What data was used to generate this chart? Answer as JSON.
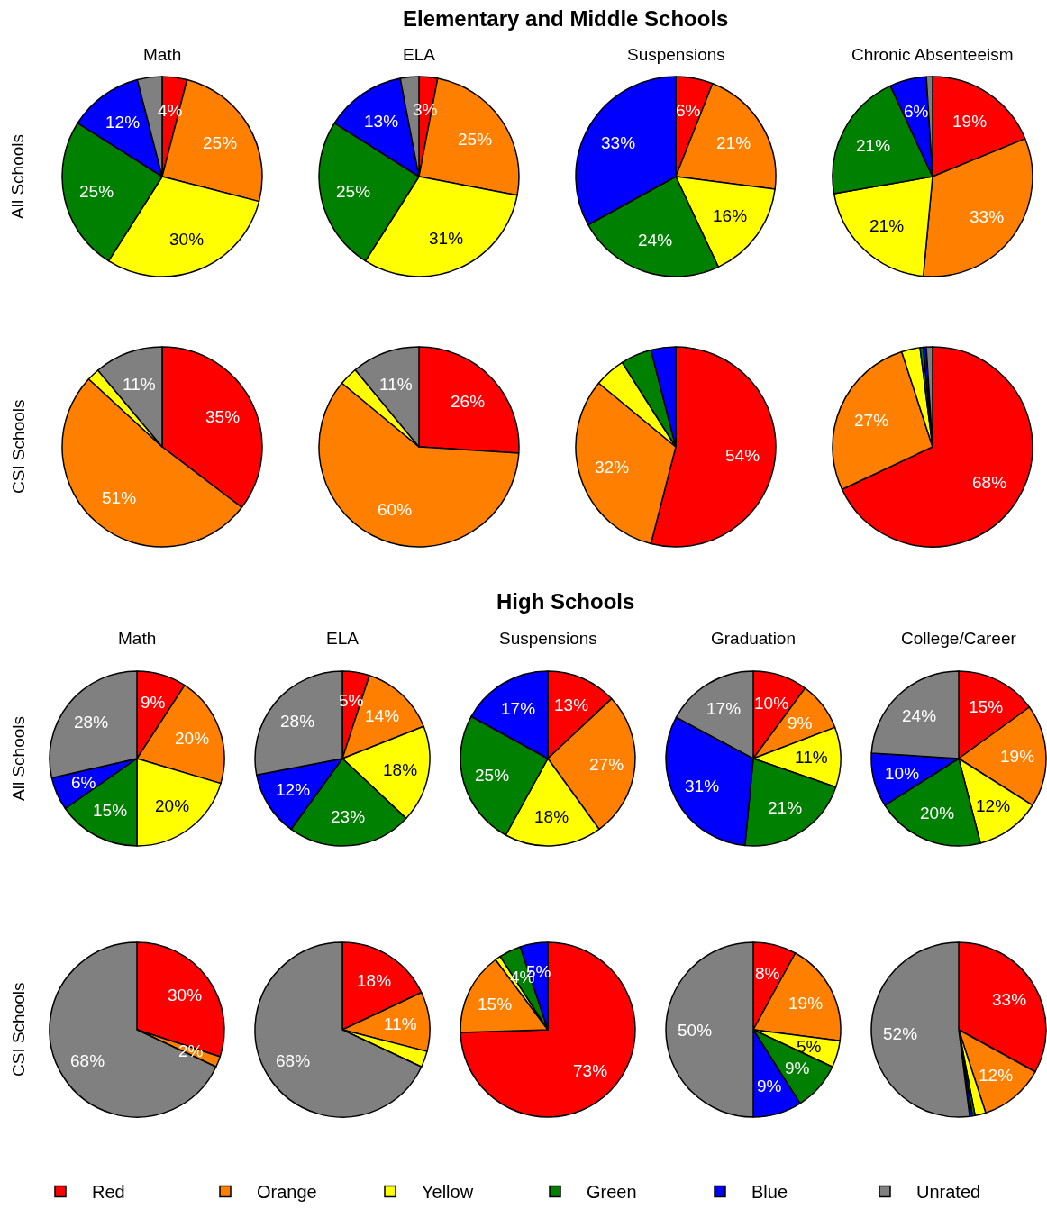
{
  "chart_data": [
    {
      "type": "pie",
      "title": "Math",
      "ylabel": "All Schools",
      "annotations": [
        "Elementary and Middle Schools"
      ],
      "legend": "bottom",
      "categories": [
        "Red",
        "Orange",
        "Yellow",
        "Green",
        "Blue",
        "Unrated"
      ],
      "values": [
        4,
        25,
        30,
        25,
        12,
        4
      ],
      "colors": [
        "#ff0000",
        "#ff8000",
        "#ffff00",
        "#008000",
        "#0000ff",
        "#808080"
      ],
      "value_labels": [
        "4%",
        "25%",
        "30%",
        "25%",
        "12%",
        null
      ]
    },
    {
      "type": "pie",
      "title": "ELA",
      "categories": [
        null,
        null,
        null,
        null,
        null,
        null
      ],
      "values": [
        3,
        25,
        31,
        25,
        13,
        3
      ],
      "colors": [
        "#ff0000",
        "#ff8000",
        "#ffff00",
        "#008000",
        "#0000ff",
        "#808080"
      ],
      "value_labels": [
        "3%",
        "25%",
        "31%",
        "25%",
        "13%",
        null
      ]
    },
    {
      "type": "pie",
      "title": "Suspensions",
      "categories": [
        null,
        null,
        null,
        null,
        null,
        null
      ],
      "values": [
        6,
        21,
        16,
        24,
        33,
        0
      ],
      "colors": [
        "#ff0000",
        "#ff8000",
        "#ffff00",
        "#008000",
        "#0000ff",
        "#808080"
      ],
      "value_labels": [
        "6%",
        "21%",
        "16%",
        "24%",
        "33%",
        null
      ]
    },
    {
      "type": "pie",
      "title": "Chronic Absenteeism",
      "categories": [
        null,
        null,
        null,
        null,
        null,
        null
      ],
      "values": [
        19,
        33,
        21,
        21,
        6,
        1
      ],
      "colors": [
        "#ff0000",
        "#ff8000",
        "#ffff00",
        "#008000",
        "#0000ff",
        "#808080"
      ],
      "value_labels": [
        "19%",
        "33%",
        "21%",
        "21%",
        "6%",
        null
      ]
    },
    {
      "type": "pie",
      "ylabel": "CSI Schools",
      "categories": [
        null,
        null,
        null,
        null,
        null,
        null
      ],
      "values": [
        35,
        51,
        2,
        0,
        0,
        11
      ],
      "colors": [
        "#ff0000",
        "#ff8000",
        "#ffff00",
        "#008000",
        "#0000ff",
        "#808080"
      ],
      "value_labels": [
        "35%",
        "51%",
        null,
        null,
        null,
        "11%"
      ]
    },
    {
      "type": "pie",
      "categories": [
        null,
        null,
        null,
        null,
        null,
        null
      ],
      "values": [
        26,
        60,
        3,
        0,
        0,
        11
      ],
      "colors": [
        "#ff0000",
        "#ff8000",
        "#ffff00",
        "#008000",
        "#0000ff",
        "#808080"
      ],
      "value_labels": [
        "26%",
        "60%",
        null,
        null,
        null,
        "11%"
      ]
    },
    {
      "type": "pie",
      "categories": [
        null,
        null,
        null,
        null,
        null,
        null
      ],
      "values": [
        54,
        32,
        5,
        5,
        4,
        0
      ],
      "colors": [
        "#ff0000",
        "#ff8000",
        "#ffff00",
        "#008000",
        "#0000ff",
        "#808080"
      ],
      "value_labels": [
        "54%",
        "32%",
        null,
        null,
        null,
        null
      ]
    },
    {
      "type": "pie",
      "categories": [
        null,
        null,
        null,
        null,
        null,
        null
      ],
      "values": [
        68,
        27,
        3,
        0.5,
        0.5,
        1
      ],
      "colors": [
        "#ff0000",
        "#ff8000",
        "#ffff00",
        "#008000",
        "#0000ff",
        "#808080"
      ],
      "value_labels": [
        "68%",
        "27%",
        null,
        null,
        null,
        null
      ]
    },
    {
      "type": "pie",
      "title": "Math",
      "ylabel": "All Schools",
      "annotations": [
        "High Schools"
      ],
      "categories": [
        null,
        null,
        null,
        null,
        null,
        null
      ],
      "values": [
        9,
        20,
        20,
        15,
        6,
        28
      ],
      "colors": [
        "#ff0000",
        "#ff8000",
        "#ffff00",
        "#008000",
        "#0000ff",
        "#808080"
      ],
      "value_labels": [
        "9%",
        "20%",
        "20%",
        "15%",
        "6%",
        "28%"
      ]
    },
    {
      "type": "pie",
      "title": "ELA",
      "categories": [
        null,
        null,
        null,
        null,
        null,
        null
      ],
      "values": [
        5,
        14,
        18,
        23,
        12,
        28
      ],
      "colors": [
        "#ff0000",
        "#ff8000",
        "#ffff00",
        "#008000",
        "#0000ff",
        "#808080"
      ],
      "value_labels": [
        "5%",
        "14%",
        "18%",
        "23%",
        "12%",
        "28%"
      ]
    },
    {
      "type": "pie",
      "title": "Suspensions",
      "categories": [
        null,
        null,
        null,
        null,
        null,
        null
      ],
      "values": [
        13,
        27,
        18,
        25,
        17,
        0
      ],
      "colors": [
        "#ff0000",
        "#ff8000",
        "#ffff00",
        "#008000",
        "#0000ff",
        "#808080"
      ],
      "value_labels": [
        "13%",
        "27%",
        "18%",
        "25%",
        "17%",
        null
      ]
    },
    {
      "type": "pie",
      "title": "Graduation",
      "categories": [
        null,
        null,
        null,
        null,
        null,
        null
      ],
      "values": [
        10,
        9,
        11,
        21,
        31,
        17
      ],
      "colors": [
        "#ff0000",
        "#ff8000",
        "#ffff00",
        "#008000",
        "#0000ff",
        "#808080"
      ],
      "value_labels": [
        "10%",
        "9%",
        "11%",
        "21%",
        "31%",
        "17%"
      ]
    },
    {
      "type": "pie",
      "title": "College/Career",
      "categories": [
        null,
        null,
        null,
        null,
        null,
        null
      ],
      "values": [
        15,
        19,
        12,
        20,
        10,
        24
      ],
      "colors": [
        "#ff0000",
        "#ff8000",
        "#ffff00",
        "#008000",
        "#0000ff",
        "#808080"
      ],
      "value_labels": [
        "15%",
        "19%",
        "12%",
        "20%",
        "10%",
        "24%"
      ]
    },
    {
      "type": "pie",
      "ylabel": "CSI Schools",
      "categories": [
        null,
        null,
        null,
        null,
        null,
        null
      ],
      "values": [
        30,
        2,
        0,
        0,
        0,
        68
      ],
      "colors": [
        "#ff0000",
        "#ff8000",
        "#ffff00",
        "#008000",
        "#0000ff",
        "#808080"
      ],
      "value_labels": [
        "30%",
        "2%",
        null,
        null,
        null,
        "68%"
      ]
    },
    {
      "type": "pie",
      "categories": [
        null,
        null,
        null,
        null,
        null,
        null
      ],
      "values": [
        18,
        11,
        3,
        0,
        0,
        68
      ],
      "colors": [
        "#ff0000",
        "#ff8000",
        "#ffff00",
        "#008000",
        "#0000ff",
        "#808080"
      ],
      "value_labels": [
        "18%",
        "11%",
        null,
        null,
        null,
        "68%"
      ]
    },
    {
      "type": "pie",
      "categories": [
        null,
        null,
        null,
        null,
        null,
        null
      ],
      "values": [
        73,
        15,
        1,
        4,
        5,
        0
      ],
      "colors": [
        "#ff0000",
        "#ff8000",
        "#ffff00",
        "#008000",
        "#0000ff",
        "#808080"
      ],
      "value_labels": [
        "73%",
        "15%",
        null,
        "4%",
        "5%",
        null
      ]
    },
    {
      "type": "pie",
      "categories": [
        null,
        null,
        null,
        null,
        null,
        null
      ],
      "values": [
        8,
        19,
        5,
        9,
        9,
        50
      ],
      "colors": [
        "#ff0000",
        "#ff8000",
        "#ffff00",
        "#008000",
        "#0000ff",
        "#808080"
      ],
      "value_labels": [
        "8%",
        "19%",
        "5%",
        "9%",
        "9%",
        "50%"
      ]
    },
    {
      "type": "pie",
      "categories": [
        null,
        null,
        null,
        null,
        null,
        null
      ],
      "values": [
        33,
        12,
        2,
        0.5,
        0.5,
        52
      ],
      "colors": [
        "#ff0000",
        "#ff8000",
        "#ffff00",
        "#008000",
        "#0000ff",
        "#808080"
      ],
      "value_labels": [
        "33%",
        "12%",
        null,
        null,
        null,
        "52%"
      ]
    }
  ]
}
